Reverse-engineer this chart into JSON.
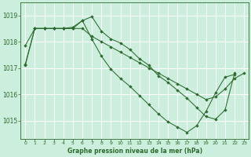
{
  "title": "Graphe pression niveau de la mer (hPa)",
  "bg_color": "#cceedd",
  "grid_color": "#ffffff",
  "line_color": "#2d6a2d",
  "xlim": [
    -0.5,
    23.5
  ],
  "ylim": [
    1014.3,
    1019.5
  ],
  "yticks": [
    1015,
    1016,
    1017,
    1018,
    1019
  ],
  "xticks": [
    0,
    1,
    2,
    3,
    4,
    5,
    6,
    7,
    8,
    9,
    10,
    11,
    12,
    13,
    14,
    15,
    16,
    17,
    18,
    19,
    20,
    21,
    22,
    23
  ],
  "series": [
    {
      "x": [
        0,
        1,
        2,
        3,
        4,
        5,
        6,
        7,
        8,
        9,
        10,
        11,
        12,
        13,
        14,
        15,
        16,
        17,
        18,
        19,
        20,
        21,
        22
      ],
      "y": [
        1017.15,
        1018.5,
        1018.5,
        1018.5,
        1018.5,
        1018.55,
        1018.8,
        1018.95,
        1018.4,
        1018.1,
        1017.95,
        1017.7,
        1017.35,
        1017.1,
        1016.7,
        1016.45,
        1016.15,
        1015.85,
        1015.5,
        1015.15,
        1015.05,
        1015.4,
        1016.8
      ]
    },
    {
      "x": [
        0,
        1,
        2,
        3,
        4,
        5,
        6,
        7,
        8,
        9,
        10,
        11,
        12,
        13,
        14,
        15,
        16,
        17,
        18,
        19,
        20,
        21,
        22,
        23
      ],
      "y": [
        1017.85,
        1018.5,
        1018.5,
        1018.5,
        1018.5,
        1018.5,
        1018.5,
        1018.2,
        1018.0,
        1017.8,
        1017.6,
        1017.4,
        1017.2,
        1017.0,
        1016.8,
        1016.6,
        1016.4,
        1016.2,
        1016.0,
        1015.8,
        1015.9,
        1016.2,
        1016.6,
        1016.8
      ]
    },
    {
      "x": [
        0,
        1,
        2,
        3,
        4,
        5,
        6,
        7,
        8,
        9,
        10,
        11,
        12,
        13,
        14,
        15,
        16,
        17,
        18,
        19,
        20,
        21,
        22
      ],
      "y": [
        1017.1,
        1018.5,
        1018.5,
        1018.5,
        1018.5,
        1018.5,
        1018.8,
        1018.1,
        1017.45,
        1016.95,
        1016.6,
        1016.3,
        1015.95,
        1015.6,
        1015.25,
        1014.95,
        1014.75,
        1014.55,
        1014.8,
        1015.35,
        1016.05,
        1016.65,
        1016.75
      ]
    }
  ]
}
